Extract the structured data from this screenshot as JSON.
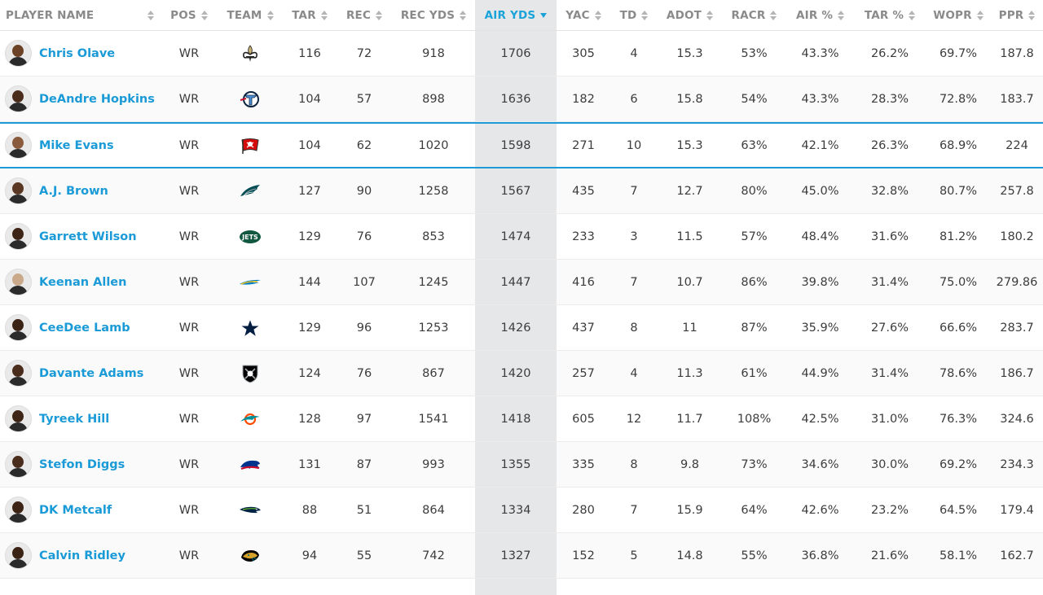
{
  "headers": [
    {
      "key": "name",
      "label": "PLAYER NAME"
    },
    {
      "key": "pos",
      "label": "POS"
    },
    {
      "key": "team",
      "label": "TEAM"
    },
    {
      "key": "tar",
      "label": "TAR"
    },
    {
      "key": "rec",
      "label": "REC"
    },
    {
      "key": "recyds",
      "label": "REC YDS"
    },
    {
      "key": "air",
      "label": "AIR YDS",
      "active": true
    },
    {
      "key": "yac",
      "label": "YAC"
    },
    {
      "key": "td",
      "label": "TD"
    },
    {
      "key": "adot",
      "label": "ADOT"
    },
    {
      "key": "racr",
      "label": "RACR"
    },
    {
      "key": "airp",
      "label": "AIR %"
    },
    {
      "key": "tarp",
      "label": "TAR %"
    },
    {
      "key": "wopr",
      "label": "WOPR"
    },
    {
      "key": "ppr",
      "label": "PPR"
    }
  ],
  "accent_color": "#1a9ad6",
  "sorted_column_bg": "#e6e7e9",
  "players": [
    {
      "name": "Chris Olave",
      "pos": "WR",
      "team_icon": "saints-fleur-de-lis-icon",
      "team_color": "#c9b074",
      "skin": "#6b4226",
      "tar": "116",
      "rec": "72",
      "recyds": "918",
      "air": "1706",
      "yac": "305",
      "td": "4",
      "adot": "15.3",
      "racr": "53%",
      "airp": "43.3%",
      "tarp": "26.2%",
      "wopr": "69.7%",
      "ppr": "187.8"
    },
    {
      "name": "DeAndre Hopkins",
      "pos": "WR",
      "team_icon": "titans-logo-icon",
      "team_color": "#4b92db",
      "skin": "#4a2c1c",
      "tar": "104",
      "rec": "57",
      "recyds": "898",
      "air": "1636",
      "yac": "182",
      "td": "6",
      "adot": "15.8",
      "racr": "54%",
      "airp": "43.3%",
      "tarp": "28.3%",
      "wopr": "72.8%",
      "ppr": "183.7"
    },
    {
      "name": "Mike Evans",
      "pos": "WR",
      "team_icon": "buccaneers-flag-icon",
      "team_color": "#d50a0a",
      "skin": "#8a5a3c",
      "tar": "104",
      "rec": "62",
      "recyds": "1020",
      "air": "1598",
      "yac": "271",
      "td": "10",
      "adot": "15.3",
      "racr": "63%",
      "airp": "42.1%",
      "tarp": "26.3%",
      "wopr": "68.9%",
      "ppr": "224",
      "highlight": true
    },
    {
      "name": "A.J. Brown",
      "pos": "WR",
      "team_icon": "eagles-wing-icon",
      "team_color": "#004c54",
      "skin": "#5a3722",
      "tar": "127",
      "rec": "90",
      "recyds": "1258",
      "air": "1567",
      "yac": "435",
      "td": "7",
      "adot": "12.7",
      "racr": "80%",
      "airp": "45.0%",
      "tarp": "32.8%",
      "wopr": "80.7%",
      "ppr": "257.8"
    },
    {
      "name": "Garrett Wilson",
      "pos": "WR",
      "team_icon": "jets-oval-icon",
      "team_color": "#125740",
      "skin": "#3d2415",
      "tar": "129",
      "rec": "76",
      "recyds": "853",
      "air": "1474",
      "yac": "233",
      "td": "3",
      "adot": "11.5",
      "racr": "57%",
      "airp": "48.4%",
      "tarp": "31.6%",
      "wopr": "81.2%",
      "ppr": "180.2"
    },
    {
      "name": "Keenan Allen",
      "pos": "WR",
      "team_icon": "chargers-bolt-icon",
      "team_color": "#0080c6",
      "skin": "#c9a98a",
      "tar": "144",
      "rec": "107",
      "recyds": "1245",
      "air": "1447",
      "yac": "416",
      "td": "7",
      "adot": "10.7",
      "racr": "86%",
      "airp": "39.8%",
      "tarp": "31.4%",
      "wopr": "75.0%",
      "ppr": "279.86"
    },
    {
      "name": "CeeDee Lamb",
      "pos": "WR",
      "team_icon": "cowboys-star-icon",
      "team_color": "#041e42",
      "skin": "#3a2214",
      "tar": "129",
      "rec": "96",
      "recyds": "1253",
      "air": "1426",
      "yac": "437",
      "td": "8",
      "adot": "11",
      "racr": "87%",
      "airp": "35.9%",
      "tarp": "27.6%",
      "wopr": "66.6%",
      "ppr": "283.7"
    },
    {
      "name": "Davante Adams",
      "pos": "WR",
      "team_icon": "raiders-shield-icon",
      "team_color": "#000000",
      "skin": "#4a2c1c",
      "tar": "124",
      "rec": "76",
      "recyds": "867",
      "air": "1420",
      "yac": "257",
      "td": "4",
      "adot": "11.3",
      "racr": "61%",
      "airp": "44.9%",
      "tarp": "31.4%",
      "wopr": "78.6%",
      "ppr": "186.7"
    },
    {
      "name": "Tyreek Hill",
      "pos": "WR",
      "team_icon": "dolphins-logo-icon",
      "team_color": "#008e97",
      "skin": "#3d2415",
      "tar": "128",
      "rec": "97",
      "recyds": "1541",
      "air": "1418",
      "yac": "605",
      "td": "12",
      "adot": "11.7",
      "racr": "108%",
      "airp": "42.5%",
      "tarp": "31.0%",
      "wopr": "76.3%",
      "ppr": "324.6"
    },
    {
      "name": "Stefon Diggs",
      "pos": "WR",
      "team_icon": "bills-buffalo-icon",
      "team_color": "#00338d",
      "skin": "#4a2c1c",
      "tar": "131",
      "rec": "87",
      "recyds": "993",
      "air": "1355",
      "yac": "335",
      "td": "8",
      "adot": "9.8",
      "racr": "73%",
      "airp": "34.6%",
      "tarp": "30.0%",
      "wopr": "69.2%",
      "ppr": "234.3"
    },
    {
      "name": "DK Metcalf",
      "pos": "WR",
      "team_icon": "seahawks-logo-icon",
      "team_color": "#002244",
      "skin": "#3d2415",
      "tar": "88",
      "rec": "51",
      "recyds": "864",
      "air": "1334",
      "yac": "280",
      "td": "7",
      "adot": "15.9",
      "racr": "64%",
      "airp": "42.6%",
      "tarp": "23.2%",
      "wopr": "64.5%",
      "ppr": "179.4"
    },
    {
      "name": "Calvin Ridley",
      "pos": "WR",
      "team_icon": "jaguars-logo-icon",
      "team_color": "#006778",
      "skin": "#3a2214",
      "tar": "94",
      "rec": "55",
      "recyds": "742",
      "air": "1327",
      "yac": "152",
      "td": "5",
      "adot": "14.8",
      "racr": "55%",
      "airp": "36.8%",
      "tarp": "21.6%",
      "wopr": "58.1%",
      "ppr": "162.7"
    }
  ]
}
